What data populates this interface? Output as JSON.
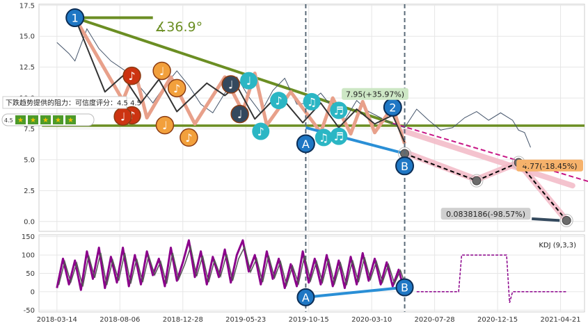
{
  "chart_data": [
    {
      "type": "line",
      "panel": "price",
      "ylim": [
        -0.8,
        17.6
      ],
      "yticks": [
        "17.5",
        "15.0",
        "12.5",
        "10.0",
        "7.5",
        "5.0",
        "2.5",
        "0.0"
      ],
      "ytick_values": [
        17.5,
        15.0,
        12.5,
        10.0,
        7.5,
        5.0,
        2.5,
        0.0
      ],
      "grid": true,
      "price_series_approx": [
        [
          0,
          14.5
        ],
        [
          2,
          13.6
        ],
        [
          3,
          13.0
        ],
        [
          5,
          15.6
        ],
        [
          7,
          14.0
        ],
        [
          9,
          13.0
        ],
        [
          12,
          12.0
        ],
        [
          14,
          10.8
        ],
        [
          16,
          9.6
        ],
        [
          18,
          11.0
        ],
        [
          20,
          12.2
        ],
        [
          22,
          11.0
        ],
        [
          24,
          9.5
        ],
        [
          26,
          8.8
        ],
        [
          28,
          10.4
        ],
        [
          30,
          11.7
        ],
        [
          32,
          10.1
        ],
        [
          34,
          8.8
        ],
        [
          36,
          10.6
        ],
        [
          38,
          11.6
        ],
        [
          40,
          9.5
        ],
        [
          42,
          9.6
        ],
        [
          44,
          10.4
        ],
        [
          46,
          9.2
        ],
        [
          48,
          8.2
        ],
        [
          50,
          9.8
        ],
        [
          52,
          8.9
        ],
        [
          54,
          8.4
        ],
        [
          56,
          7.9
        ],
        [
          58,
          7.6
        ],
        [
          60,
          9.1
        ],
        [
          62,
          8.2
        ],
        [
          64,
          7.4
        ],
        [
          66,
          7.6
        ],
        [
          68,
          8.4
        ],
        [
          70,
          8.9
        ],
        [
          72,
          8.2
        ],
        [
          74,
          8.8
        ],
        [
          76,
          8.2
        ],
        [
          77,
          7.4
        ],
        [
          78,
          7.2
        ],
        [
          79,
          6.0
        ]
      ],
      "zigzag_points": [
        [
          3,
          16.5
        ],
        [
          11,
          9.8
        ],
        [
          13,
          12.2
        ],
        [
          15,
          8.4
        ],
        [
          19,
          11.7
        ],
        [
          23,
          7.9
        ],
        [
          28,
          11.7
        ],
        [
          31,
          8.9
        ],
        [
          33,
          12.0
        ],
        [
          35,
          7.8
        ],
        [
          39,
          10.5
        ],
        [
          44,
          7.2
        ],
        [
          46,
          10.0
        ],
        [
          49,
          7.1
        ],
        [
          51,
          9.7
        ],
        [
          53,
          7.2
        ],
        [
          56,
          9.3
        ],
        [
          58,
          6.3
        ]
      ],
      "zigzag_dark_points": [
        [
          3,
          16.5
        ],
        [
          8,
          10.5
        ],
        [
          11,
          11.8
        ],
        [
          14,
          9.6
        ],
        [
          17,
          11.5
        ],
        [
          20,
          8.9
        ],
        [
          25,
          11.2
        ],
        [
          28,
          10.2
        ],
        [
          30,
          11.0
        ],
        [
          33,
          8.3
        ],
        [
          37,
          10.3
        ],
        [
          41,
          8.0
        ],
        [
          44,
          9.6
        ],
        [
          47,
          7.6
        ],
        [
          50,
          9.1
        ],
        [
          53,
          7.9
        ],
        [
          56,
          8.6
        ],
        [
          58,
          6.4
        ]
      ],
      "resistance_line": [
        [
          3,
          16.5
        ],
        [
          56,
          7.95
        ],
        [
          91,
          2.9
        ]
      ],
      "support_line_y": 7.76,
      "channel_line": [
        [
          41.5,
          7.6
        ],
        [
          58,
          5.5
        ]
      ],
      "projection_dashed": [
        [
          58,
          5.5
        ],
        [
          70,
          3.3
        ],
        [
          77,
          4.77
        ],
        [
          85,
          0.08
        ]
      ],
      "projection_points": [
        [
          58,
          5.5
        ],
        [
          70,
          3.3
        ],
        [
          77,
          4.77
        ],
        [
          85,
          0.08
        ]
      ],
      "angle_line": [
        [
          3,
          16.5
        ],
        [
          16,
          16.5
        ]
      ],
      "vertical_dividers": [
        41.5,
        58
      ],
      "markers": [
        {
          "label": "1",
          "x": 3,
          "y": 16.5,
          "style": "blue"
        },
        {
          "label": "2",
          "x": 56,
          "y": 9.25,
          "style": "blue"
        },
        {
          "label": "A",
          "x": 41.5,
          "y": 6.3,
          "style": "blue"
        },
        {
          "label": "B",
          "x": 58,
          "y": 4.5,
          "style": "blue"
        }
      ],
      "notes": [
        {
          "glyph": "♪",
          "x": 12.5,
          "y": 11.8,
          "style": "red"
        },
        {
          "glyph": "♪",
          "x": 12.5,
          "y": 8.6,
          "style": "red"
        },
        {
          "glyph": "♩",
          "x": 11,
          "y": 8.5,
          "style": "red-hidden"
        },
        {
          "glyph": "♩",
          "x": 17.5,
          "y": 12.2,
          "style": "orange"
        },
        {
          "glyph": "♪",
          "x": 20,
          "y": 10.8,
          "style": "orange"
        },
        {
          "glyph": "♩",
          "x": 18,
          "y": 7.8,
          "style": "orange"
        },
        {
          "glyph": "♪",
          "x": 22,
          "y": 6.8,
          "style": "orange"
        },
        {
          "glyph": "♩",
          "x": 29,
          "y": 11.1,
          "style": "dark"
        },
        {
          "glyph": "♩",
          "x": 30.5,
          "y": 8.7,
          "style": "dark"
        },
        {
          "glyph": "♩",
          "x": 32,
          "y": 11.4,
          "style": "teal"
        },
        {
          "glyph": "♪",
          "x": 34,
          "y": 7.3,
          "style": "teal"
        },
        {
          "glyph": "♪",
          "x": 37,
          "y": 9.8,
          "style": "teal"
        },
        {
          "glyph": "♫",
          "x": 42.5,
          "y": 9.7,
          "style": "teal"
        },
        {
          "glyph": "♫",
          "x": 44.5,
          "y": 6.8,
          "style": "teal"
        },
        {
          "glyph": "♬",
          "x": 47,
          "y": 9.0,
          "style": "teal"
        },
        {
          "glyph": "♬",
          "x": 47,
          "y": 6.9,
          "style": "teal"
        }
      ],
      "annotations": {
        "angle_text": "∡36.9°",
        "peak_label": "7.95(+35.97%)",
        "mid_label": "4.77(-18.45%)",
        "low_label": "0.0838186(-98.57%)",
        "resistance_note": "下跌趋势提供的阻力：可信度评分：4.5",
        "rating_value": "4.5",
        "rating_stars": 5
      }
    },
    {
      "type": "line",
      "panel": "indicator",
      "legend": "KDJ (9,3,3)",
      "legend_position": "top-right",
      "ylim": [
        -55,
        155
      ],
      "yticks": [
        "150",
        "100",
        "50",
        "0",
        "-50"
      ],
      "ytick_values": [
        150,
        100,
        50,
        0,
        -50
      ],
      "grid": true,
      "xtick_labels": [
        "2018-03-14",
        "2018-08-06",
        "2018-12-28",
        "2019-05-23",
        "2019-10-15",
        "2020-03-10",
        "2020-07-28",
        "2020-12-15",
        "2021-04-21"
      ],
      "kdj_approx": [
        [
          0,
          10
        ],
        [
          1,
          90
        ],
        [
          2,
          20
        ],
        [
          3,
          85
        ],
        [
          4,
          5
        ],
        [
          5,
          110
        ],
        [
          6,
          35
        ],
        [
          7,
          120
        ],
        [
          8,
          10
        ],
        [
          9,
          95
        ],
        [
          10,
          25
        ],
        [
          11,
          120
        ],
        [
          12,
          15
        ],
        [
          13,
          100
        ],
        [
          14,
          20
        ],
        [
          15,
          110
        ],
        [
          16,
          45
        ],
        [
          17,
          90
        ],
        [
          18,
          15
        ],
        [
          19,
          120
        ],
        [
          20,
          30
        ],
        [
          21,
          80
        ],
        [
          22,
          140
        ],
        [
          23,
          40
        ],
        [
          24,
          110
        ],
        [
          25,
          20
        ],
        [
          26,
          95
        ],
        [
          27,
          40
        ],
        [
          28,
          115
        ],
        [
          29,
          25
        ],
        [
          30,
          100
        ],
        [
          31,
          140
        ],
        [
          32,
          55
        ],
        [
          33,
          100
        ],
        [
          34,
          20
        ],
        [
          35,
          110
        ],
        [
          36,
          35
        ],
        [
          37,
          90
        ],
        [
          38,
          10
        ],
        [
          39,
          75
        ],
        [
          40,
          15
        ],
        [
          41,
          110
        ],
        [
          42,
          25
        ],
        [
          43,
          90
        ],
        [
          44,
          20
        ],
        [
          45,
          100
        ],
        [
          46,
          15
        ],
        [
          47,
          85
        ],
        [
          48,
          10
        ],
        [
          49,
          95
        ],
        [
          50,
          20
        ],
        [
          51,
          105
        ],
        [
          52,
          30
        ],
        [
          53,
          90
        ],
        [
          54,
          20
        ],
        [
          55,
          80
        ],
        [
          56,
          15
        ],
        [
          57,
          60
        ],
        [
          58,
          0
        ]
      ],
      "future_kdj_approx": [
        [
          60,
          0
        ],
        [
          67,
          0
        ],
        [
          67.5,
          100
        ],
        [
          75,
          100
        ],
        [
          75.5,
          -30
        ],
        [
          76,
          0
        ],
        [
          85,
          0
        ]
      ],
      "ab_line": [
        [
          41.5,
          -15
        ],
        [
          58,
          12
        ]
      ],
      "markers": [
        {
          "label": "A",
          "x": 41.5,
          "y": -15,
          "style": "blue"
        },
        {
          "label": "B",
          "x": 58,
          "y": 12,
          "style": "blue"
        }
      ],
      "vertical_dividers": [
        41.5,
        58
      ]
    }
  ],
  "colors": {
    "olive": "#6b8e23",
    "salmon": "#e8a08a",
    "dark_line": "#333333",
    "blue_marker": "#1f77c4",
    "pink_band": "#f2b8c6",
    "magenta_dash": "#c71585",
    "purple_kdj": "#8b008b",
    "ab_line": "#2a8fd6",
    "divider": "#5a6a78",
    "note_red": "#cc3311",
    "note_orange": "#f2a03c",
    "note_dark": "#34495e",
    "note_teal": "#2bb6c4",
    "label_green_bg": "#cde7c5",
    "label_orange_bg": "#f6b26b",
    "label_gray_bg": "#d0d0d0"
  }
}
